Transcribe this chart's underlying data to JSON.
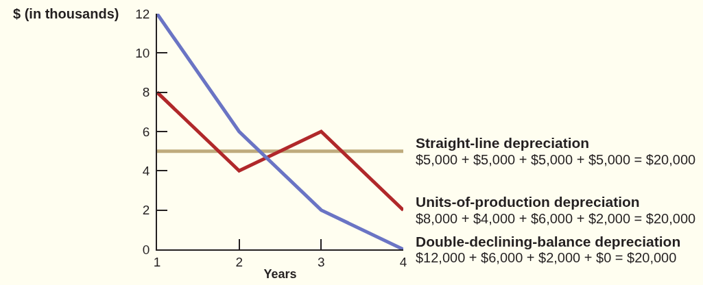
{
  "chart_data": {
    "type": "line",
    "xlabel": "Years",
    "ylabel": "$ (in thousands)",
    "x": [
      1,
      2,
      3,
      4
    ],
    "xlim": [
      1,
      4
    ],
    "xticks": [
      1,
      2,
      3,
      4
    ],
    "ylim": [
      0,
      12
    ],
    "yticks": [
      0,
      2,
      4,
      6,
      8,
      10,
      12
    ],
    "grid": false,
    "legend": false,
    "marker": "none",
    "line_style": "solid",
    "series": [
      {
        "name": "Straight-line depreciation",
        "color": "#bfab7d",
        "values": [
          5,
          5,
          5,
          5
        ]
      },
      {
        "name": "Units-of-production depreciation",
        "color": "#b0282a",
        "values": [
          8,
          4,
          6,
          2
        ]
      },
      {
        "name": "Double-declining-balance depreciation",
        "color": "#6a74c4",
        "values": [
          12,
          6,
          2,
          0
        ]
      }
    ],
    "annotations": [
      "$5,000 + $5,000 + $5,000 + $5,000 = $20,000",
      "$8,000 + $4,000 + $6,000 + $2,000 = $20,000",
      "$12,000 + $6,000 + $2,000 + $0 = $20,000"
    ]
  }
}
